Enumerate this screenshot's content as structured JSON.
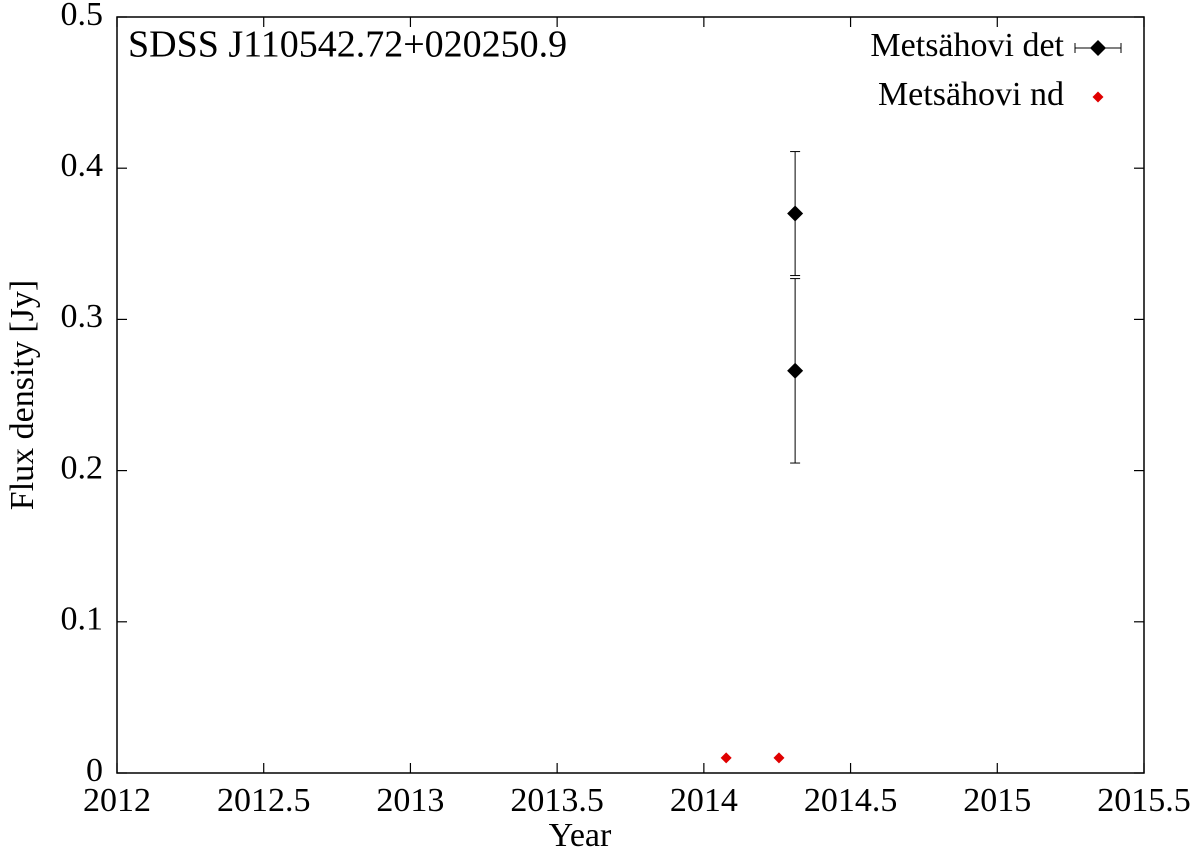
{
  "chart_data": {
    "type": "scatter",
    "title": "SDSS J110542.72+020250.9",
    "x_label": "Year",
    "y_label": "Flux density [Jy]",
    "xlim": [
      2012,
      2015.5
    ],
    "ylim": [
      0,
      0.5
    ],
    "xticks": [
      2012,
      2012.5,
      2013,
      2013.5,
      2014,
      2014.5,
      2015,
      2015.5
    ],
    "yticks": [
      0,
      0.1,
      0.2,
      0.3,
      0.4,
      0.5
    ],
    "legend": "upper right",
    "series": [
      {
        "name": "Metsähovi det",
        "color": "#000000",
        "x": [
          2014.311,
          2014.311
        ],
        "values": [
          0.37,
          0.266
        ],
        "errors": [
          0.041,
          0.061
        ]
      },
      {
        "name": "Metsähovi nd",
        "color": "#e00000",
        "x": [
          2014.076,
          2014.256
        ],
        "values": [
          0.01,
          0.01
        ]
      }
    ]
  }
}
